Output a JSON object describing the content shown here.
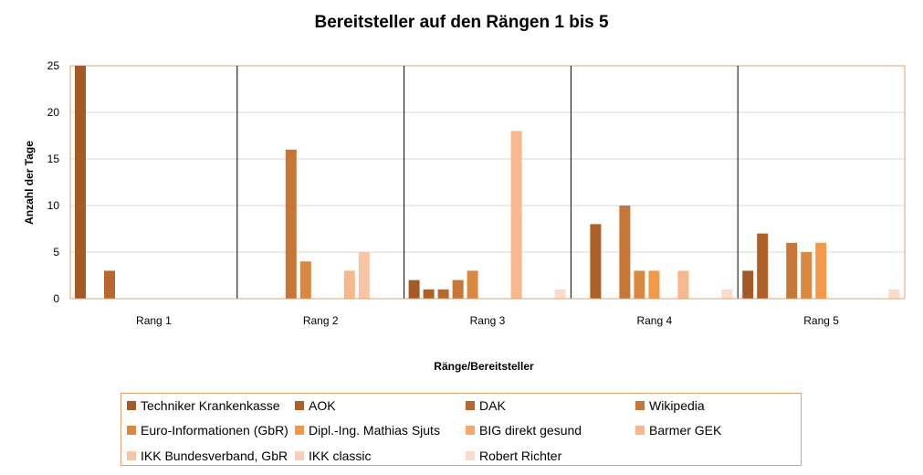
{
  "chart_data": {
    "type": "bar",
    "title": "Bereitsteller auf den Rängen 1 bis 5",
    "xlabel": "Ränge/Bereitsteller",
    "ylabel": "Anzahl der Tage",
    "ylim": [
      0,
      25
    ],
    "yticks": [
      0,
      5,
      10,
      15,
      20,
      25
    ],
    "grid": true,
    "legend_position": "bottom",
    "categories": [
      "Rang 1",
      "Rang 2",
      "Rang 3",
      "Rang 4",
      "Rang 5"
    ],
    "series": [
      {
        "name": "Techniker Krankenkasse",
        "color": "#a35a27",
        "values": [
          25,
          0,
          2,
          0,
          3
        ]
      },
      {
        "name": "AOK",
        "color": "#ad6128",
        "values": [
          0,
          0,
          1,
          8,
          7
        ]
      },
      {
        "name": "DAK",
        "color": "#b8682e",
        "values": [
          3,
          0,
          1,
          0,
          0
        ]
      },
      {
        "name": "Wikipedia",
        "color": "#c67636",
        "values": [
          0,
          16,
          2,
          10,
          6
        ]
      },
      {
        "name": "Euro-Informationen (GbR)",
        "color": "#d98840",
        "values": [
          0,
          4,
          3,
          3,
          5
        ]
      },
      {
        "name": "Dipl.-Ing. Mathias Sjuts",
        "color": "#f29a4a",
        "values": [
          0,
          0,
          0,
          3,
          6
        ]
      },
      {
        "name": "BIG direkt gesund",
        "color": "#f5a86a",
        "values": [
          0,
          0,
          0,
          0,
          0
        ]
      },
      {
        "name": "Barmer GEK",
        "color": "#f6b88c",
        "values": [
          0,
          3,
          18,
          3,
          0
        ]
      },
      {
        "name": "IKK Bundesverband,  GbR",
        "color": "#f8c6a6",
        "values": [
          0,
          5,
          0,
          0,
          0
        ]
      },
      {
        "name": "IKK classic",
        "color": "#f9d0b8",
        "values": [
          0,
          0,
          0,
          0,
          0
        ]
      },
      {
        "name": "Robert Richter",
        "color": "#fbdccb",
        "values": [
          0,
          0,
          1,
          1,
          1
        ]
      }
    ]
  }
}
